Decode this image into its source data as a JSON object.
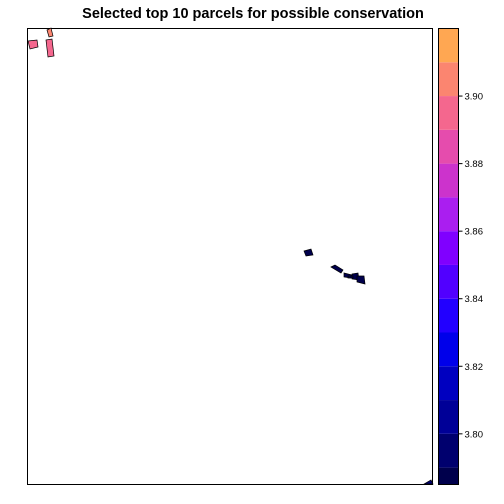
{
  "chart_data": {
    "type": "map",
    "title": "Selected top 10 parcels for possible conservation",
    "colorbar": {
      "range": [
        3.785,
        3.92
      ],
      "levels": [
        3.785,
        3.79,
        3.8,
        3.81,
        3.82,
        3.83,
        3.84,
        3.85,
        3.86,
        3.87,
        3.88,
        3.89,
        3.9,
        3.91,
        3.92
      ],
      "colors": [
        "#00004c",
        "#00006e",
        "#000097",
        "#0000c0",
        "#0000ea",
        "#2200ff",
        "#5100ff",
        "#8000ff",
        "#aa1ef0",
        "#cc33cc",
        "#e54cad",
        "#f4678e",
        "#fb8570",
        "#ffa752",
        "#ffcc3a",
        "#ffff5e"
      ],
      "tick_values": [
        3.8,
        3.82,
        3.84,
        3.86,
        3.88,
        3.9
      ],
      "tick_labels": [
        "3.80",
        "3.82",
        "3.84",
        "3.86",
        "3.88",
        "3.90"
      ]
    },
    "parcels": [
      {
        "id": "parcel-1",
        "value": 3.895,
        "region": "top-left"
      },
      {
        "id": "parcel-2",
        "value": 3.905,
        "region": "top-left"
      },
      {
        "id": "parcel-3",
        "value": 3.895,
        "region": "top-left"
      },
      {
        "id": "parcel-4",
        "value": 3.79,
        "region": "center-right"
      },
      {
        "id": "parcel-5",
        "value": 3.79,
        "region": "center-right"
      },
      {
        "id": "parcel-6",
        "value": 3.79,
        "region": "center-right"
      },
      {
        "id": "parcel-7",
        "value": 3.79,
        "region": "center-right"
      },
      {
        "id": "parcel-8",
        "value": 3.79,
        "region": "center-right"
      },
      {
        "id": "parcel-9",
        "value": 3.79,
        "region": "center-right"
      },
      {
        "id": "parcel-10",
        "value": 3.795,
        "region": "bottom-right"
      }
    ]
  }
}
